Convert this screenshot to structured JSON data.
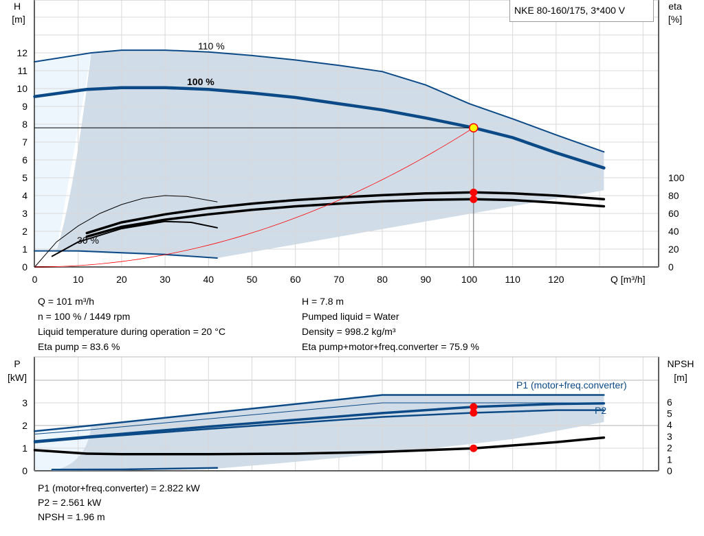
{
  "chart_data": [
    {
      "type": "line",
      "title": "NKE 80-160/175, 3*400 V",
      "xlabel": "Q [m³/h]",
      "ylabel_left": "H",
      "ylabel_left_unit": "[m]",
      "ylabel_right": "eta",
      "ylabel_right_unit": "[%]",
      "xlim": [
        0,
        140
      ],
      "ylim_left": [
        0,
        14
      ],
      "ylim_right": [
        0,
        100
      ],
      "x_ticks": [
        0,
        10,
        20,
        30,
        40,
        50,
        60,
        70,
        80,
        90,
        100,
        110,
        120
      ],
      "y_ticks_left": [
        0,
        1,
        2,
        3,
        4,
        5,
        6,
        7,
        8,
        9,
        10,
        11,
        12
      ],
      "y_ticks_right": [
        0,
        20,
        40,
        60,
        80,
        100
      ],
      "grid": true,
      "curve_labels": [
        "110 %",
        "100 %",
        "30 %"
      ],
      "series": [
        {
          "name": "110 %",
          "axis": "H",
          "x": [
            0,
            13,
            20,
            30,
            40,
            50,
            60,
            70,
            80,
            90,
            100,
            110,
            120,
            131
          ],
          "y": [
            11.5,
            12.0,
            12.15,
            12.15,
            12.05,
            11.85,
            11.6,
            11.3,
            10.95,
            10.2,
            9.15,
            8.3,
            7.4,
            6.45
          ]
        },
        {
          "name": "100 %",
          "axis": "H",
          "x": [
            0,
            12,
            20,
            30,
            40,
            50,
            60,
            70,
            80,
            90,
            101,
            110,
            120,
            131
          ],
          "y": [
            9.55,
            9.95,
            10.05,
            10.05,
            9.95,
            9.75,
            9.5,
            9.15,
            8.8,
            8.35,
            7.8,
            7.25,
            6.4,
            5.55
          ]
        },
        {
          "name": "30 %",
          "axis": "H",
          "x": [
            0,
            10,
            20,
            30,
            42
          ],
          "y": [
            0.9,
            0.9,
            0.8,
            0.7,
            0.5
          ]
        },
        {
          "name": "Eta pump",
          "axis": "eta",
          "x": [
            12,
            20,
            30,
            40,
            50,
            60,
            70,
            80,
            90,
            101,
            110,
            120,
            131
          ],
          "y": [
            38,
            50,
            59,
            66,
            71,
            75,
            78,
            80.5,
            82.5,
            83.6,
            82.5,
            80,
            76
          ]
        },
        {
          "name": "Eta pump+motor+freq.converter",
          "axis": "eta",
          "x": [
            12,
            20,
            30,
            40,
            50,
            60,
            70,
            80,
            90,
            101,
            110,
            120,
            131
          ],
          "y": [
            34,
            45,
            53,
            59,
            64,
            68,
            71,
            73.5,
            75.2,
            75.9,
            75,
            72,
            68
          ]
        },
        {
          "axis": "eta",
          "x": [
            0,
            5,
            10,
            15,
            20,
            25,
            30,
            35,
            42
          ],
          "y": [
            0,
            28,
            46,
            60,
            70,
            77,
            80,
            79,
            73
          ]
        },
        {
          "axis": "eta",
          "x": [
            4,
            10,
            20,
            30,
            36,
            42
          ],
          "y": [
            12,
            28,
            43,
            51,
            50,
            44
          ]
        }
      ],
      "system_curve": {
        "q": 101,
        "h": 7.8
      },
      "duty_point": {
        "q": 101,
        "h": 7.8,
        "eta_pump": 83.6,
        "eta_total": 75.9
      }
    },
    {
      "type": "line",
      "ylabel_left": "P",
      "ylabel_left_unit": "[kW]",
      "ylabel_right": "NPSH",
      "ylabel_right_unit": "[m]",
      "xlim": [
        0,
        140
      ],
      "ylim_left": [
        0,
        4.5
      ],
      "ylim_right": [
        0,
        9
      ],
      "y_ticks_left": [
        0,
        1,
        2,
        3
      ],
      "y_ticks_right": [
        0,
        1,
        2,
        3,
        4,
        5,
        6
      ],
      "curve_labels": [
        "P1 (motor+freq.converter)",
        "P2"
      ],
      "series": [
        {
          "axis": "P",
          "x": [
            0,
            13,
            80,
            131
          ],
          "y": [
            1.75,
            2.0,
            3.35,
            3.35
          ]
        },
        {
          "axis": "P",
          "x": [
            0,
            12,
            80,
            131
          ],
          "y": [
            1.62,
            1.8,
            3.0,
            3.0
          ]
        },
        {
          "name": "P1 (motor+freq.converter)",
          "axis": "P",
          "x": [
            0,
            12,
            40,
            80,
            101,
            120,
            131
          ],
          "y": [
            1.3,
            1.5,
            1.95,
            2.55,
            2.822,
            2.95,
            2.98
          ]
        },
        {
          "name": "P2",
          "axis": "P",
          "x": [
            0,
            12,
            40,
            80,
            101,
            120,
            131
          ],
          "y": [
            1.25,
            1.45,
            1.85,
            2.38,
            2.561,
            2.68,
            2.68
          ]
        },
        {
          "name": "NPSH",
          "axis": "NPSH",
          "x": [
            0,
            12,
            20,
            40,
            60,
            80,
            101,
            120,
            131
          ],
          "y": [
            1.8,
            1.5,
            1.45,
            1.45,
            1.5,
            1.65,
            1.96,
            2.5,
            2.9
          ]
        },
        {
          "axis": "NPSH",
          "x": [
            4,
            20,
            42
          ],
          "y": [
            0.1,
            0.12,
            0.25
          ]
        }
      ],
      "duty_point": {
        "q": 101,
        "p1": 2.822,
        "p2": 2.561,
        "npsh": 1.96
      }
    }
  ],
  "info": {
    "q": "Q = 101 m³/h",
    "h": "H = 7.8 m",
    "n": "n = 100 % / 1449 rpm",
    "liquid": "Pumped liquid = Water",
    "temp": "Liquid temperature during operation = 20 °C",
    "density": "Density = 998.2 kg/m³",
    "eta_pump": "Eta pump = 83.6 %",
    "eta_total": "Eta pump+motor+freq.converter = 75.9 %",
    "p1": "P1 (motor+freq.converter) = 2.822 kW",
    "p2": "P2 = 2.561 kW",
    "npsh": "NPSH = 1.96 m"
  },
  "colors": {
    "curve": "#0b4a86",
    "shade": "#d0dce8",
    "light": "#eef6fd",
    "duty": "#ff0000",
    "point_fill": "#ffff00"
  }
}
